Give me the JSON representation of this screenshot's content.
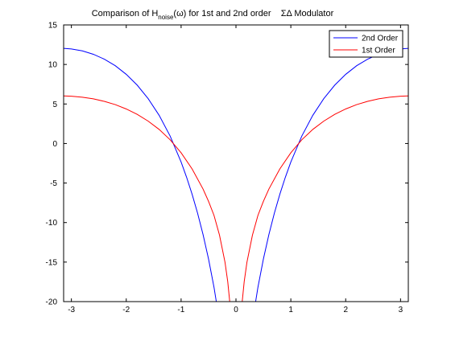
{
  "chart_data": {
    "type": "line",
    "title": {
      "prefix": "Comparison of H",
      "subscript": "noise",
      "suffix": "(ω) for 1st and 2nd order",
      "gap": "    ",
      "tail": "ΣΔ Modulator"
    },
    "xlabel": "",
    "ylabel": "",
    "xlim": [
      -3.1416,
      3.1416
    ],
    "ylim": [
      -20,
      15
    ],
    "xticks": [
      -3,
      -2,
      -1,
      0,
      1,
      2,
      3
    ],
    "yticks": [
      -20,
      -15,
      -10,
      -5,
      0,
      5,
      10,
      15
    ],
    "grid": false,
    "legend_position": "top-right",
    "series": [
      {
        "name": "2nd Order",
        "color": "#0000ff",
        "x": [
          -3.1416,
          -3.0,
          -2.8,
          -2.6,
          -2.4,
          -2.2,
          -2.0,
          -1.8,
          -1.6,
          -1.4,
          -1.2,
          -1.0,
          -0.9,
          -0.8,
          -0.7,
          -0.6,
          -0.5,
          -0.4,
          -0.35,
          -0.3158,
          0.3158,
          0.35,
          0.4,
          0.5,
          0.6,
          0.7,
          0.8,
          0.9,
          1.0,
          1.2,
          1.4,
          1.6,
          1.8,
          2.0,
          2.2,
          2.4,
          2.6,
          2.8,
          3.0,
          3.1416
        ],
        "values": [
          12.04,
          11.96,
          11.72,
          11.29,
          10.67,
          9.84,
          8.75,
          7.38,
          5.67,
          3.56,
          0.94,
          -2.34,
          -4.27,
          -6.41,
          -8.81,
          -11.52,
          -14.61,
          -18.2,
          -20.37,
          -20.0,
          -20.0,
          -20.37,
          -18.2,
          -14.61,
          -11.52,
          -8.81,
          -6.41,
          -4.27,
          -2.34,
          0.94,
          3.56,
          5.67,
          7.38,
          8.75,
          9.84,
          10.67,
          11.29,
          11.72,
          11.96,
          12.04
        ]
      },
      {
        "name": "1st Order",
        "color": "#ff0000",
        "x": [
          -3.1416,
          -3.0,
          -2.8,
          -2.6,
          -2.4,
          -2.2,
          -2.0,
          -1.8,
          -1.6,
          -1.4,
          -1.2,
          -1.0,
          -0.8,
          -0.6,
          -0.5,
          -0.4,
          -0.3,
          -0.2,
          -0.15,
          -0.1,
          0.1,
          0.15,
          0.2,
          0.3,
          0.4,
          0.5,
          0.6,
          0.8,
          1.0,
          1.2,
          1.4,
          1.6,
          1.8,
          2.0,
          2.2,
          2.4,
          2.6,
          2.8,
          3.0,
          3.1416
        ],
        "values": [
          6.02,
          5.98,
          5.86,
          5.65,
          5.33,
          4.92,
          4.37,
          3.69,
          2.83,
          1.78,
          0.47,
          -1.17,
          -3.21,
          -5.76,
          -7.31,
          -9.1,
          -11.59,
          -15.02,
          -17.48,
          -20.96,
          -20.96,
          -17.48,
          -15.02,
          -11.59,
          -9.1,
          -7.31,
          -5.76,
          -3.21,
          -1.17,
          0.47,
          1.78,
          2.83,
          3.69,
          4.37,
          4.92,
          5.33,
          5.65,
          5.86,
          5.98,
          6.02
        ]
      }
    ]
  }
}
